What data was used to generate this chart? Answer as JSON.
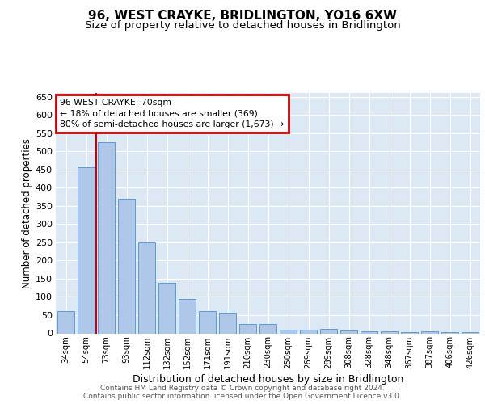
{
  "title": "96, WEST CRAYKE, BRIDLINGTON, YO16 6XW",
  "subtitle": "Size of property relative to detached houses in Bridlington",
  "xlabel": "Distribution of detached houses by size in Bridlington",
  "ylabel": "Number of detached properties",
  "categories": [
    "34sqm",
    "54sqm",
    "73sqm",
    "93sqm",
    "112sqm",
    "132sqm",
    "152sqm",
    "171sqm",
    "191sqm",
    "210sqm",
    "230sqm",
    "250sqm",
    "269sqm",
    "289sqm",
    "308sqm",
    "328sqm",
    "348sqm",
    "367sqm",
    "387sqm",
    "406sqm",
    "426sqm"
  ],
  "values": [
    60,
    455,
    525,
    370,
    250,
    138,
    95,
    60,
    57,
    25,
    25,
    10,
    10,
    12,
    7,
    6,
    5,
    4,
    5,
    3,
    3
  ],
  "bar_color": "#aec6e8",
  "bar_edge_color": "#5b9bd5",
  "vline_color": "#cc0000",
  "annotation_line1": "96 WEST CRAYKE: 70sqm",
  "annotation_line2": "← 18% of detached houses are smaller (369)",
  "annotation_line3": "80% of semi-detached houses are larger (1,673) →",
  "annotation_box_color": "#cc0000",
  "ylim": [
    0,
    660
  ],
  "yticks": [
    0,
    50,
    100,
    150,
    200,
    250,
    300,
    350,
    400,
    450,
    500,
    550,
    600,
    650
  ],
  "background_color": "#dde8f5",
  "footer_text": "Contains HM Land Registry data © Crown copyright and database right 2024.\nContains public sector information licensed under the Open Government Licence v3.0.",
  "title_fontsize": 11,
  "subtitle_fontsize": 9.5,
  "xlabel_fontsize": 9,
  "ylabel_fontsize": 8.5,
  "footer_fontsize": 6.5,
  "grid_color": "#ffffff"
}
